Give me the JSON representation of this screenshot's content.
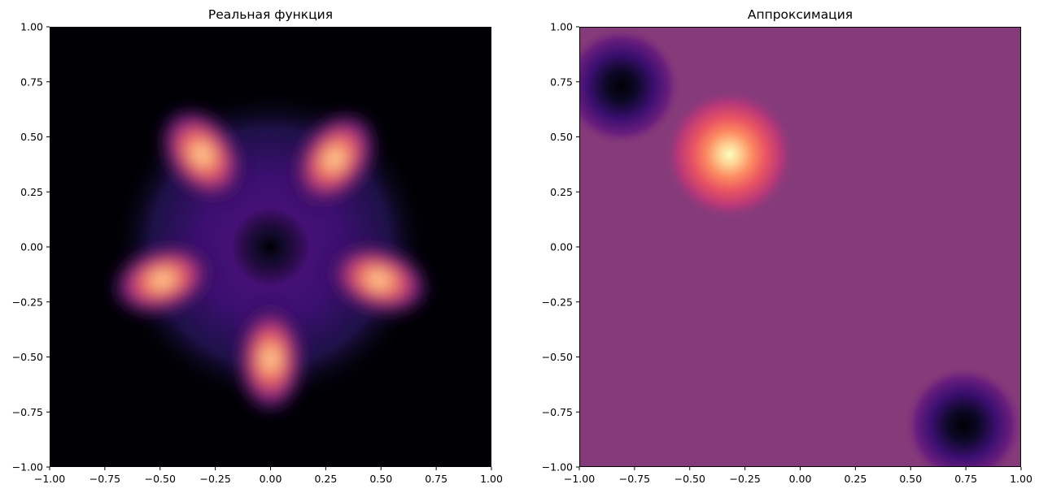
{
  "chart_data": [
    {
      "type": "heatmap",
      "title": "Реальная функция",
      "colormap": "magma",
      "xlim": [
        -1.0,
        1.0
      ],
      "ylim": [
        -1.0,
        1.0
      ],
      "xticks": [
        "−1.00",
        "−0.75",
        "−0.50",
        "−0.25",
        "0.00",
        "0.25",
        "0.50",
        "0.75",
        "1.00"
      ],
      "yticks": [
        "−1.00",
        "−0.75",
        "−0.50",
        "−0.25",
        "0.00",
        "0.25",
        "0.50",
        "0.75",
        "1.00"
      ],
      "features": [
        {
          "kind": "petal-peak",
          "x": -0.31,
          "y": 0.42
        },
        {
          "kind": "petal-peak",
          "x": 0.29,
          "y": 0.4
        },
        {
          "kind": "petal-peak",
          "x": -0.49,
          "y": -0.15
        },
        {
          "kind": "petal-peak",
          "x": 0.49,
          "y": -0.15
        },
        {
          "kind": "petal-peak",
          "x": 0.0,
          "y": -0.51
        },
        {
          "kind": "minimum",
          "x": 0.0,
          "y": 0.0
        }
      ],
      "grid": false
    },
    {
      "type": "heatmap",
      "title": "Аппроксимация",
      "colormap": "magma",
      "xlim": [
        -1.0,
        1.0
      ],
      "ylim": [
        -1.0,
        1.0
      ],
      "xticks": [
        "−1.00",
        "−0.75",
        "−0.50",
        "−0.25",
        "0.00",
        "0.25",
        "0.50",
        "0.75",
        "1.00"
      ],
      "yticks": [
        "−1.00",
        "−0.75",
        "−0.50",
        "−0.25",
        "0.00",
        "0.25",
        "0.50",
        "0.75",
        "1.00"
      ],
      "features": [
        {
          "kind": "peak",
          "x": -0.32,
          "y": 0.42
        },
        {
          "kind": "minimum",
          "x": -0.81,
          "y": 0.73
        },
        {
          "kind": "minimum",
          "x": 0.74,
          "y": -0.81
        }
      ],
      "background_color": "#853a7a",
      "grid": false
    }
  ]
}
